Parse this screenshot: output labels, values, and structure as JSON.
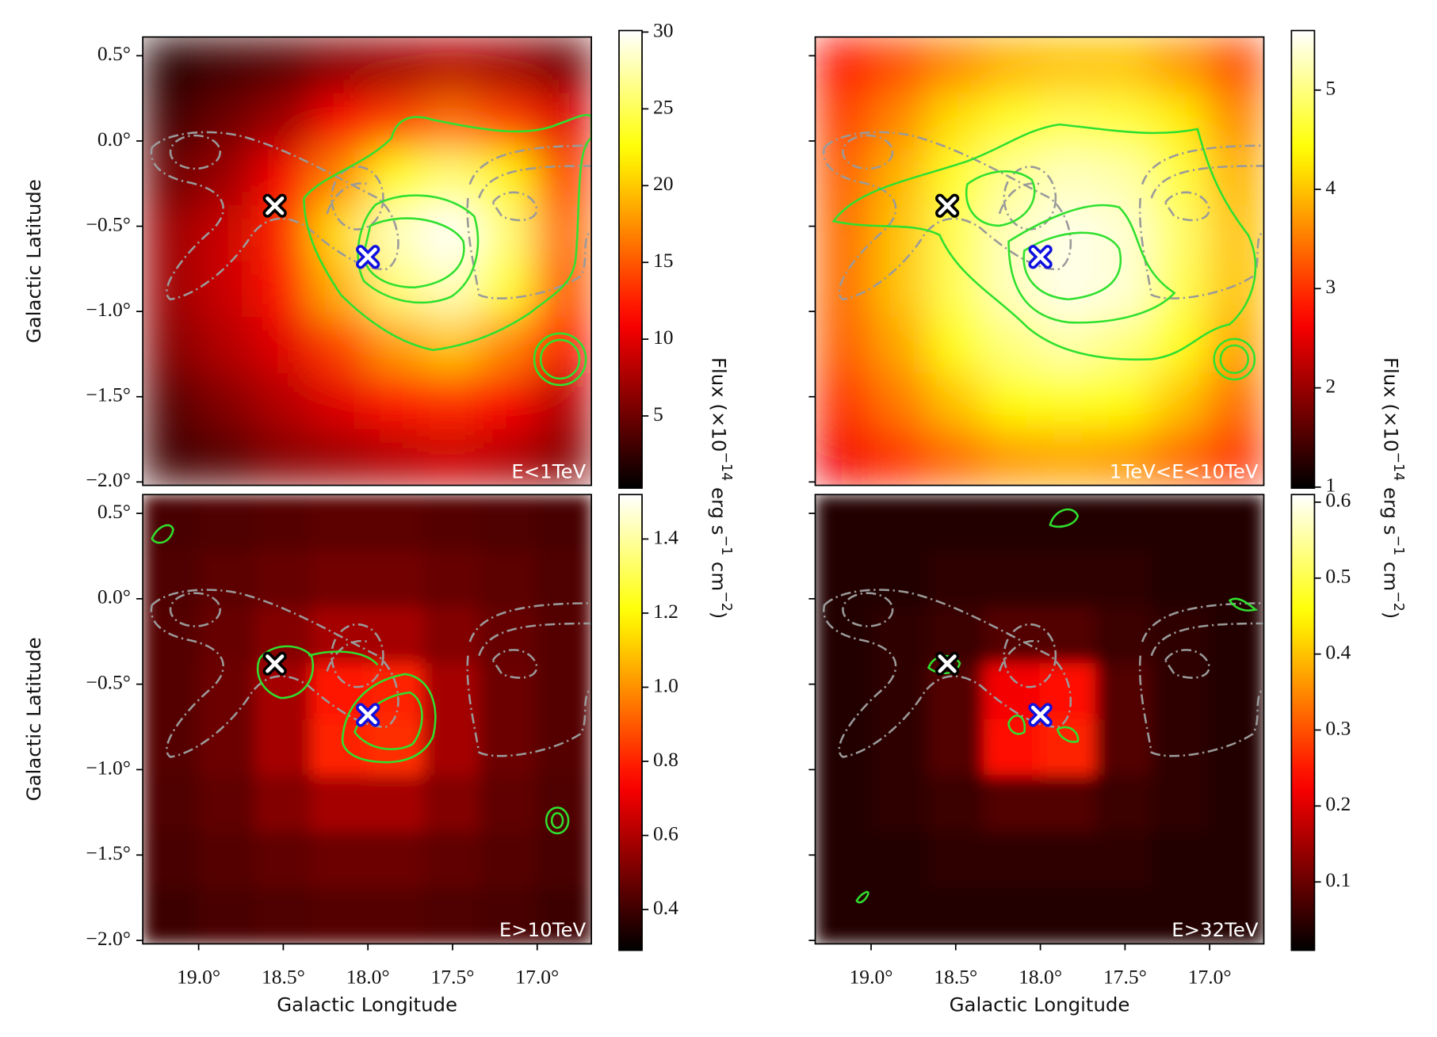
{
  "chart_data": [
    {
      "type": "heatmap",
      "label": "E<1TeV",
      "colormap": "hot",
      "ylabel": "Galactic Latitude",
      "xlim": [
        19.33,
        16.68
      ],
      "ylim": [
        -2.02,
        0.61
      ],
      "yticks": [
        {
          "value": 0.5,
          "label": "0.5°"
        },
        {
          "value": 0,
          "label": "0.0°"
        },
        {
          "value": -0.5,
          "label": "−0.5°"
        },
        {
          "value": -1,
          "label": "−1.0°"
        },
        {
          "value": -1.5,
          "label": "−1.5°"
        },
        {
          "value": -2,
          "label": "−2.0°"
        }
      ],
      "show_ytick_labels": true,
      "zlim": [
        0.3,
        30.1
      ],
      "zticks": [
        5,
        10,
        15,
        20,
        25,
        30
      ],
      "colorbar_label": [
        "Flux (×10",
        "−14",
        " erg s",
        "−1",
        " cm",
        "−2",
        ")"
      ],
      "z": [
        [
          2,
          3,
          4,
          6,
          7,
          8,
          7,
          5
        ],
        [
          3,
          5,
          7,
          11,
          14,
          16,
          14,
          10
        ],
        [
          5,
          7,
          11,
          17,
          23,
          26,
          22,
          14
        ],
        [
          7,
          9,
          13,
          21,
          28,
          30,
          26,
          16
        ],
        [
          7,
          9,
          12,
          19,
          26,
          28,
          24,
          15
        ],
        [
          6,
          8,
          10,
          14,
          18,
          20,
          17,
          12
        ],
        [
          4,
          6,
          8,
          10,
          12,
          13,
          11,
          8
        ],
        [
          3,
          4,
          6,
          7,
          8,
          9,
          8,
          6
        ]
      ],
      "markers": [
        {
          "x": 18.55,
          "y": -0.38,
          "color": "#000000"
        },
        {
          "x": 18.0,
          "y": -0.68,
          "color": "#1010e0"
        }
      ]
    },
    {
      "type": "heatmap",
      "label": "1TeV<E<10TeV",
      "colormap": "hot",
      "xlim": [
        19.33,
        16.68
      ],
      "ylim": [
        -2.02,
        0.61
      ],
      "yticks": [
        0.5,
        0,
        -0.5,
        -1,
        -1.5,
        -2
      ],
      "show_ytick_labels": false,
      "zlim": [
        0.99,
        5.6
      ],
      "zticks": [
        1,
        2,
        3,
        4,
        5
      ],
      "colorbar_label": [
        "Flux (×10",
        "−14",
        " erg s",
        "−1",
        " cm",
        "−2",
        ")"
      ],
      "z": [
        [
          2.8,
          3.2,
          3.6,
          3.9,
          4.0,
          4.0,
          3.7,
          3.2
        ],
        [
          3.1,
          3.6,
          4.2,
          4.6,
          4.8,
          4.7,
          4.3,
          3.6
        ],
        [
          3.3,
          3.9,
          4.6,
          5.1,
          5.3,
          5.2,
          4.7,
          3.9
        ],
        [
          3.4,
          4.0,
          4.8,
          5.3,
          5.5,
          5.4,
          4.9,
          4.0
        ],
        [
          3.4,
          4.0,
          4.8,
          5.3,
          5.5,
          5.4,
          4.8,
          4.0
        ],
        [
          3.3,
          3.8,
          4.5,
          5.0,
          5.2,
          5.0,
          4.5,
          3.8
        ],
        [
          3.0,
          3.5,
          4.0,
          4.4,
          4.5,
          4.4,
          4.0,
          3.4
        ],
        [
          2.6,
          3.0,
          3.4,
          3.7,
          3.8,
          3.7,
          3.4,
          3.0
        ]
      ],
      "markers": [
        {
          "x": 18.55,
          "y": -0.38,
          "color": "#000000"
        },
        {
          "x": 18.0,
          "y": -0.68,
          "color": "#1010e0"
        }
      ]
    },
    {
      "type": "heatmap",
      "label": "E>10TeV",
      "colormap": "hot",
      "ylabel": "Galactic Latitude",
      "xlabel": "Galactic Longitude",
      "xlim": [
        19.33,
        16.68
      ],
      "ylim": [
        -2.02,
        0.61
      ],
      "xticks": [
        {
          "value": 19,
          "label": "19.0°"
        },
        {
          "value": 18.5,
          "label": "18.5°"
        },
        {
          "value": 18,
          "label": "18.0°"
        },
        {
          "value": 17.5,
          "label": "17.5°"
        },
        {
          "value": 17,
          "label": "17.0°"
        }
      ],
      "yticks": [
        {
          "value": 0.5,
          "label": "0.5°"
        },
        {
          "value": 0,
          "label": "0.0°"
        },
        {
          "value": -0.5,
          "label": "−0.5°"
        },
        {
          "value": -1,
          "label": "−1.0°"
        },
        {
          "value": -1.5,
          "label": "−1.5°"
        },
        {
          "value": -2,
          "label": "−2.0°"
        }
      ],
      "show_ytick_labels": true,
      "zlim": [
        0.29,
        1.52
      ],
      "zticks": [
        0.4,
        0.6,
        0.8,
        {
          "value": 1,
          "label": "1.0"
        },
        1.2,
        1.4
      ],
      "z": [
        [
          0.42,
          0.43,
          0.44,
          0.45,
          0.45,
          0.44,
          0.43,
          0.42
        ],
        [
          0.43,
          0.45,
          0.47,
          0.49,
          0.49,
          0.47,
          0.45,
          0.43
        ],
        [
          0.44,
          0.47,
          0.52,
          0.58,
          0.58,
          0.52,
          0.47,
          0.44
        ],
        [
          0.44,
          0.48,
          0.58,
          0.78,
          0.8,
          0.58,
          0.48,
          0.44
        ],
        [
          0.44,
          0.48,
          0.58,
          0.8,
          0.82,
          0.58,
          0.48,
          0.44
        ],
        [
          0.43,
          0.46,
          0.52,
          0.58,
          0.58,
          0.52,
          0.46,
          0.43
        ],
        [
          0.42,
          0.44,
          0.46,
          0.48,
          0.48,
          0.46,
          0.44,
          0.42
        ],
        [
          0.4,
          0.42,
          0.43,
          0.44,
          0.44,
          0.43,
          0.42,
          0.4
        ]
      ],
      "markers": [
        {
          "x": 18.55,
          "y": -0.38,
          "color": "#000000"
        },
        {
          "x": 18.0,
          "y": -0.68,
          "color": "#1010e0"
        }
      ]
    },
    {
      "type": "heatmap",
      "label": "E>32TeV",
      "colormap": "hot",
      "xlabel": "Galactic Longitude",
      "xlim": [
        19.33,
        16.68
      ],
      "ylim": [
        -2.02,
        0.61
      ],
      "xticks": [
        {
          "value": 19,
          "label": "19.0°"
        },
        {
          "value": 18.5,
          "label": "18.5°"
        },
        {
          "value": 18,
          "label": "18.0°"
        },
        {
          "value": 17.5,
          "label": "17.5°"
        },
        {
          "value": 17,
          "label": "17.0°"
        }
      ],
      "yticks": [
        0.5,
        0,
        -0.5,
        -1,
        -1.5,
        -2
      ],
      "show_ytick_labels": false,
      "zlim": [
        0.01,
        0.61
      ],
      "zticks": [
        0.1,
        0.2,
        0.3,
        0.4,
        0.5,
        0.6
      ],
      "z": [
        [
          0.04,
          0.04,
          0.04,
          0.04,
          0.04,
          0.04,
          0.04,
          0.04
        ],
        [
          0.04,
          0.04,
          0.05,
          0.05,
          0.05,
          0.05,
          0.04,
          0.04
        ],
        [
          0.04,
          0.05,
          0.06,
          0.08,
          0.08,
          0.06,
          0.05,
          0.04
        ],
        [
          0.04,
          0.05,
          0.08,
          0.22,
          0.24,
          0.08,
          0.05,
          0.04
        ],
        [
          0.04,
          0.05,
          0.08,
          0.24,
          0.26,
          0.08,
          0.05,
          0.04
        ],
        [
          0.04,
          0.05,
          0.06,
          0.08,
          0.08,
          0.06,
          0.05,
          0.04
        ],
        [
          0.04,
          0.04,
          0.05,
          0.05,
          0.05,
          0.05,
          0.04,
          0.04
        ],
        [
          0.04,
          0.04,
          0.04,
          0.04,
          0.04,
          0.04,
          0.04,
          0.04
        ]
      ],
      "markers": [
        {
          "x": 18.55,
          "y": -0.38,
          "color": "#000000"
        },
        {
          "x": 18.0,
          "y": -0.68,
          "color": "#1010e0"
        }
      ]
    }
  ]
}
